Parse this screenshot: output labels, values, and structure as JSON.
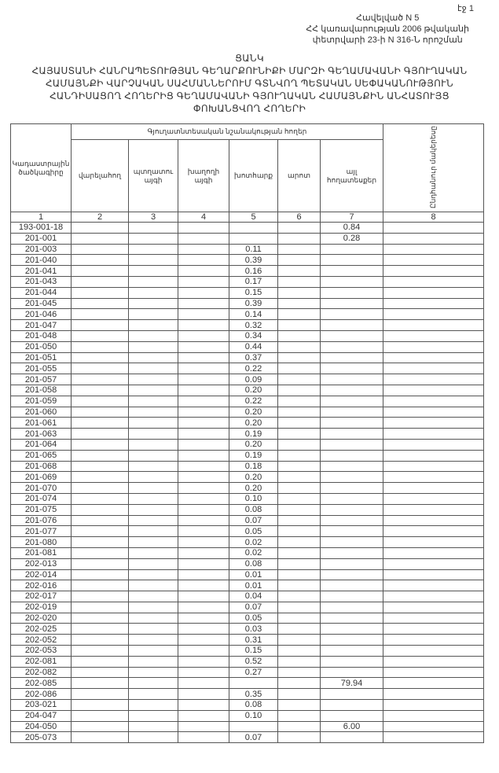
{
  "header": {
    "page": "էջ 1",
    "annex_lines": [
      "Հավելված N 5",
      "ՀՀ կառավարության 2006 թվականի",
      "փետրվարի 23-ի N 316-Ն որոշման"
    ],
    "title_lines": [
      "ՑԱՆԿ",
      "ՀԱՅԱՍՏԱՆԻ ՀԱՆՐԱՊԵՏՈՒԹՅԱՆ ԳԵՂԱՐՔՈՒՆԻՔԻ ՄԱՐԶԻ ԳԵՂԱՄԱՎԱՆԻ ԳՅՈՒՂԱԿԱՆ",
      "ՀԱՄԱՅՆՔԻ ՎԱՐՉԱԿԱՆ ՍԱՀՄԱՆՆԵՐՈՒՄ ԳՏՆՎՈՂ ՊԵՏԱԿԱՆ ՍԵՓԱԿԱՆՈՒԹՅՈՒՆ",
      "ՀԱՆԴԻՍԱՑՈՂ ՀՈՂԵՐԻՑ ԳԵՂԱՄԱՎԱՆԻ ԳՅՈՒՂԱԿԱՆ ՀԱՄԱՅՆՔԻՆ ԱՆՀԱՏՈՒՅՑ",
      "ՓՈԽԱՆՑՎՈՂ ՀՈՂԵՐԻ"
    ]
  },
  "table": {
    "col1": "Կադաստրային ծածկագիրը",
    "group": "Գյուղատնտեսական նշանակության հողեր",
    "subcols": [
      "վարելահող",
      "պտղատու այգի",
      "խաղողի այգի",
      "խոտհարք",
      "արոտ",
      "այլ հողատեսքեր"
    ],
    "col8": "Ընդհանուր մակերեսը",
    "numbers": [
      "1",
      "2",
      "3",
      "4",
      "5",
      "6",
      "7",
      "8"
    ],
    "rows": [
      [
        "193-001-18",
        "",
        "0.84"
      ],
      [
        "201-001",
        "",
        "0.28"
      ],
      [
        "201-003",
        "0.11",
        ""
      ],
      [
        "201-040",
        "0.39",
        ""
      ],
      [
        "201-041",
        "0.16",
        ""
      ],
      [
        "201-043",
        "0.17",
        ""
      ],
      [
        "201-044",
        "0.15",
        ""
      ],
      [
        "201-045",
        "0.39",
        ""
      ],
      [
        "201-046",
        "0.14",
        ""
      ],
      [
        "201-047",
        "0.32",
        ""
      ],
      [
        "201-048",
        "0.34",
        ""
      ],
      [
        "201-050",
        "0.44",
        ""
      ],
      [
        "201-051",
        "0.37",
        ""
      ],
      [
        "201-055",
        "0.22",
        ""
      ],
      [
        "201-057",
        "0.09",
        ""
      ],
      [
        "201-058",
        "0.20",
        ""
      ],
      [
        "201-059",
        "0.22",
        ""
      ],
      [
        "201-060",
        "0.20",
        ""
      ],
      [
        "201-061",
        "0.20",
        ""
      ],
      [
        "201-063",
        "0.19",
        ""
      ],
      [
        "201-064",
        "0.20",
        ""
      ],
      [
        "201-065",
        "0.19",
        ""
      ],
      [
        "201-068",
        "0.18",
        ""
      ],
      [
        "201-069",
        "0.20",
        ""
      ],
      [
        "201-070",
        "0.20",
        ""
      ],
      [
        "201-074",
        "0.10",
        ""
      ],
      [
        "201-075",
        "0.08",
        ""
      ],
      [
        "201-076",
        "0.07",
        ""
      ],
      [
        "201-077",
        "0.05",
        ""
      ],
      [
        "201-080",
        "0.02",
        ""
      ],
      [
        "201-081",
        "0.02",
        ""
      ],
      [
        "202-013",
        "0.08",
        ""
      ],
      [
        "202-014",
        "0.01",
        ""
      ],
      [
        "202-016",
        "0.01",
        ""
      ],
      [
        "202-017",
        "0.04",
        ""
      ],
      [
        "202-019",
        "0.07",
        ""
      ],
      [
        "202-020",
        "0.05",
        ""
      ],
      [
        "202-025",
        "0.03",
        ""
      ],
      [
        "202-052",
        "0.31",
        ""
      ],
      [
        "202-053",
        "0.15",
        ""
      ],
      [
        "202-081",
        "0.52",
        ""
      ],
      [
        "202-082",
        "0.27",
        ""
      ],
      [
        "202-085",
        "",
        "79.94"
      ],
      [
        "202-086",
        "0.35",
        ""
      ],
      [
        "203-021",
        "0.08",
        ""
      ],
      [
        "204-047",
        "0.10",
        ""
      ],
      [
        "204-050",
        "",
        "6.00"
      ],
      [
        "205-073",
        "0.07",
        ""
      ]
    ]
  }
}
